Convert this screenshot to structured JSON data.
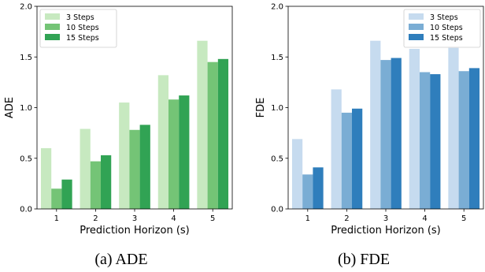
{
  "chart_data": [
    {
      "type": "bar",
      "ylabel": "ADE",
      "xlabel": "Prediction Horizon (s)",
      "caption": "(a)  ADE",
      "categories": [
        "1",
        "2",
        "3",
        "4",
        "5"
      ],
      "ylim": [
        0,
        2.0
      ],
      "yticks": [
        "0.0",
        "0.5",
        "1.0",
        "1.5",
        "2.0"
      ],
      "legend_position": "top-left",
      "series": [
        {
          "name": "3 Steps",
          "color": "#c7e9c0",
          "values": [
            0.6,
            0.79,
            1.05,
            1.32,
            1.66
          ]
        },
        {
          "name": "10 Steps",
          "color": "#74c476",
          "values": [
            0.2,
            0.47,
            0.78,
            1.08,
            1.45
          ]
        },
        {
          "name": "15 Steps",
          "color": "#31a354",
          "values": [
            0.29,
            0.53,
            0.83,
            1.12,
            1.48
          ]
        }
      ]
    },
    {
      "type": "bar",
      "ylabel": "FDE",
      "xlabel": "Prediction Horizon (s)",
      "caption": "(b)  FDE",
      "categories": [
        "1",
        "2",
        "3",
        "4",
        "5"
      ],
      "ylim": [
        0,
        2.0
      ],
      "yticks": [
        "0.0",
        "0.5",
        "1.0",
        "1.5",
        "2.0"
      ],
      "legend_position": "top-right",
      "series": [
        {
          "name": "3 Steps",
          "color": "#c6dbef",
          "values": [
            0.69,
            1.18,
            1.66,
            1.58,
            1.59
          ]
        },
        {
          "name": "10 Steps",
          "color": "#7aadd4",
          "values": [
            0.34,
            0.95,
            1.47,
            1.35,
            1.36
          ]
        },
        {
          "name": "15 Steps",
          "color": "#2f7ebc",
          "values": [
            0.41,
            0.99,
            1.49,
            1.33,
            1.39
          ]
        }
      ]
    }
  ]
}
